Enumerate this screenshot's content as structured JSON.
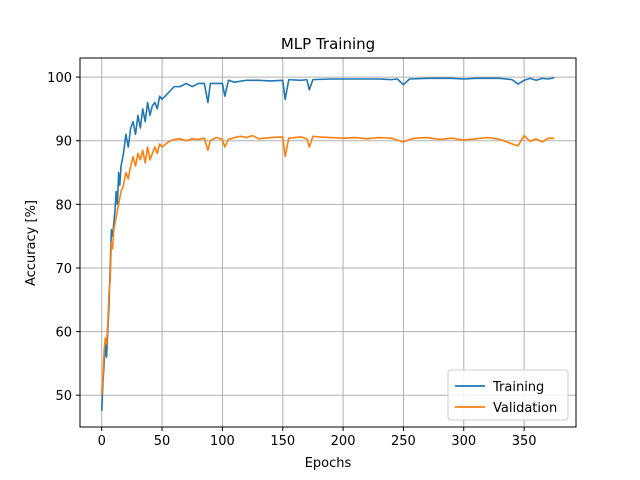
{
  "chart_data": {
    "type": "line",
    "title": "MLP Training",
    "xlabel": "Epochs",
    "ylabel": "Accuracy [%]",
    "xlim": [
      -18,
      393
    ],
    "ylim": [
      45,
      103
    ],
    "xticks": [
      0,
      50,
      100,
      150,
      200,
      250,
      300,
      350
    ],
    "yticks": [
      50,
      60,
      70,
      80,
      90,
      100
    ],
    "grid": true,
    "legend_position": "bottom-right",
    "series": [
      {
        "name": "Training",
        "color": "#1f77b4",
        "points": [
          [
            0,
            47.5
          ],
          [
            1,
            52
          ],
          [
            2,
            55
          ],
          [
            3,
            58
          ],
          [
            4,
            56
          ],
          [
            5,
            60
          ],
          [
            6,
            64
          ],
          [
            7,
            70
          ],
          [
            8,
            76
          ],
          [
            9,
            75
          ],
          [
            10,
            77
          ],
          [
            11,
            79
          ],
          [
            12,
            82
          ],
          [
            13,
            80
          ],
          [
            14,
            85
          ],
          [
            15,
            83
          ],
          [
            16,
            86
          ],
          [
            18,
            88
          ],
          [
            20,
            91
          ],
          [
            22,
            89
          ],
          [
            24,
            92
          ],
          [
            26,
            93
          ],
          [
            28,
            91
          ],
          [
            30,
            94
          ],
          [
            32,
            92
          ],
          [
            34,
            95
          ],
          [
            36,
            93
          ],
          [
            38,
            96
          ],
          [
            40,
            94
          ],
          [
            42,
            95.5
          ],
          [
            44,
            96
          ],
          [
            46,
            95
          ],
          [
            48,
            97
          ],
          [
            50,
            96.5
          ],
          [
            55,
            97.5
          ],
          [
            60,
            98.5
          ],
          [
            65,
            98.5
          ],
          [
            70,
            99
          ],
          [
            75,
            98.5
          ],
          [
            80,
            99
          ],
          [
            85,
            99
          ],
          [
            88,
            96
          ],
          [
            90,
            99
          ],
          [
            95,
            99
          ],
          [
            100,
            99
          ],
          [
            102,
            97
          ],
          [
            105,
            99.5
          ],
          [
            110,
            99.2
          ],
          [
            120,
            99.5
          ],
          [
            130,
            99.5
          ],
          [
            140,
            99.4
          ],
          [
            150,
            99.5
          ],
          [
            152,
            96.5
          ],
          [
            155,
            99.6
          ],
          [
            165,
            99.5
          ],
          [
            170,
            99.6
          ],
          [
            172,
            98
          ],
          [
            175,
            99.6
          ],
          [
            190,
            99.7
          ],
          [
            200,
            99.7
          ],
          [
            210,
            99.7
          ],
          [
            220,
            99.7
          ],
          [
            230,
            99.7
          ],
          [
            240,
            99.6
          ],
          [
            245,
            99.7
          ],
          [
            250,
            98.8
          ],
          [
            255,
            99.7
          ],
          [
            270,
            99.8
          ],
          [
            280,
            99.8
          ],
          [
            290,
            99.8
          ],
          [
            300,
            99.7
          ],
          [
            310,
            99.8
          ],
          [
            320,
            99.8
          ],
          [
            330,
            99.8
          ],
          [
            340,
            99.6
          ],
          [
            345,
            98.9
          ],
          [
            350,
            99.5
          ],
          [
            355,
            99.8
          ],
          [
            360,
            99.5
          ],
          [
            365,
            99.8
          ],
          [
            370,
            99.7
          ],
          [
            375,
            99.9
          ]
        ]
      },
      {
        "name": "Validation",
        "color": "#ff7f0e",
        "points": [
          [
            0,
            50
          ],
          [
            1,
            53
          ],
          [
            2,
            57
          ],
          [
            3,
            59
          ],
          [
            4,
            58
          ],
          [
            5,
            61
          ],
          [
            6,
            66
          ],
          [
            7,
            68
          ],
          [
            8,
            74
          ],
          [
            9,
            73
          ],
          [
            10,
            76
          ],
          [
            11,
            77
          ],
          [
            12,
            78
          ],
          [
            13,
            79
          ],
          [
            14,
            80
          ],
          [
            15,
            81
          ],
          [
            16,
            82
          ],
          [
            18,
            83
          ],
          [
            20,
            85
          ],
          [
            22,
            84
          ],
          [
            24,
            86
          ],
          [
            26,
            87.5
          ],
          [
            28,
            86
          ],
          [
            30,
            88
          ],
          [
            32,
            87
          ],
          [
            34,
            88.5
          ],
          [
            36,
            86.5
          ],
          [
            38,
            89
          ],
          [
            40,
            87
          ],
          [
            42,
            88
          ],
          [
            44,
            89
          ],
          [
            46,
            88
          ],
          [
            48,
            89.5
          ],
          [
            50,
            89
          ],
          [
            55,
            89.8
          ],
          [
            60,
            90.2
          ],
          [
            65,
            90.3
          ],
          [
            70,
            90
          ],
          [
            75,
            90.3
          ],
          [
            80,
            90.2
          ],
          [
            85,
            90.4
          ],
          [
            88,
            88.5
          ],
          [
            90,
            90
          ],
          [
            95,
            90.5
          ],
          [
            100,
            90.2
          ],
          [
            102,
            89
          ],
          [
            105,
            90.2
          ],
          [
            110,
            90.5
          ],
          [
            115,
            90.7
          ],
          [
            120,
            90.5
          ],
          [
            125,
            90.8
          ],
          [
            130,
            90.3
          ],
          [
            140,
            90.5
          ],
          [
            150,
            90.6
          ],
          [
            152,
            87.5
          ],
          [
            155,
            90.4
          ],
          [
            160,
            90.5
          ],
          [
            165,
            90.6
          ],
          [
            170,
            90.3
          ],
          [
            172,
            89
          ],
          [
            175,
            90.7
          ],
          [
            180,
            90.6
          ],
          [
            190,
            90.5
          ],
          [
            200,
            90.4
          ],
          [
            210,
            90.5
          ],
          [
            220,
            90.3
          ],
          [
            230,
            90.5
          ],
          [
            240,
            90.4
          ],
          [
            250,
            89.8
          ],
          [
            255,
            90.2
          ],
          [
            260,
            90.4
          ],
          [
            270,
            90.5
          ],
          [
            280,
            90.2
          ],
          [
            290,
            90.4
          ],
          [
            300,
            90.1
          ],
          [
            310,
            90.3
          ],
          [
            320,
            90.5
          ],
          [
            330,
            90.2
          ],
          [
            340,
            89.5
          ],
          [
            345,
            89.2
          ],
          [
            350,
            90.8
          ],
          [
            355,
            89.9
          ],
          [
            360,
            90.3
          ],
          [
            365,
            89.8
          ],
          [
            370,
            90.4
          ],
          [
            375,
            90.4
          ]
        ]
      }
    ]
  }
}
